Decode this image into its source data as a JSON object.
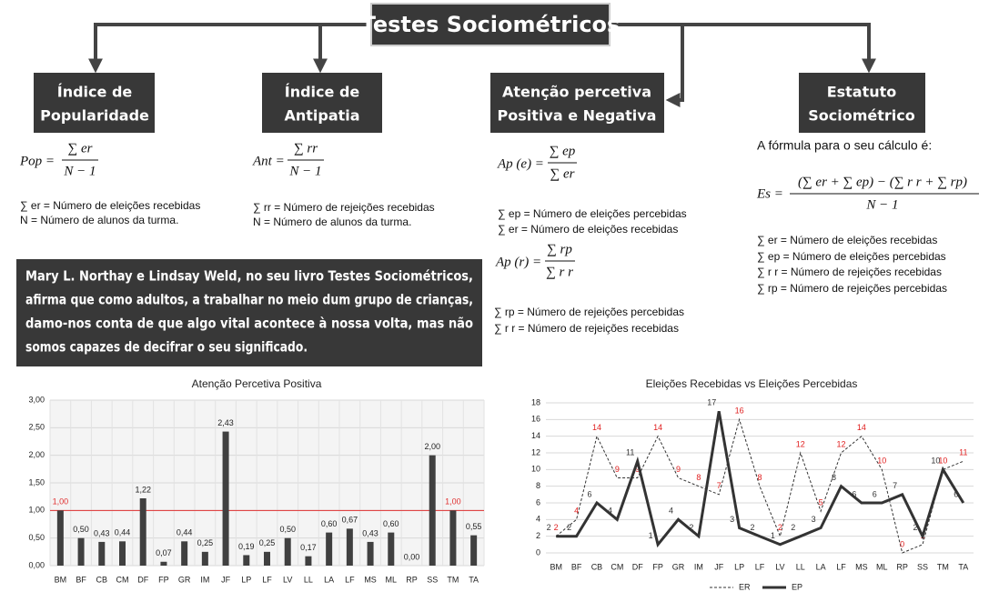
{
  "header": {
    "title": "Testes Sociométricos"
  },
  "sections": [
    {
      "title_lines": [
        "Índice de",
        "Popularidade"
      ],
      "formulas": [
        {
          "lhs": "Pop =",
          "num": "∑ er",
          "den": "N − 1"
        }
      ],
      "definitions": [
        "∑ er = Número de eleições recebidas",
        "N = Número de alunos da turma."
      ]
    },
    {
      "title_lines": [
        "Índice de",
        "Antipatia"
      ],
      "formulas": [
        {
          "lhs": "Ant =",
          "num": "∑ rr",
          "den": "N − 1"
        }
      ],
      "definitions": [
        "∑ rr = Número de rejeições recebidas",
        "N = Número de alunos da turma."
      ]
    },
    {
      "title_lines": [
        "Atenção percetiva",
        "Positiva e Negativa"
      ],
      "formulas": [
        {
          "lhs": "Ap (e) =",
          "num": "∑ ep",
          "den": "∑ er"
        },
        {
          "lhs": "Ap (r) =",
          "num": "∑ rp",
          "den": "∑ r r"
        }
      ],
      "definitions": [
        "∑ ep = Número de eleições percebidas",
        "∑ er = Número de eleições recebidas",
        "∑ rp = Número de rejeições percebidas",
        "∑ r r = Número de rejeições recebidas"
      ]
    },
    {
      "title_lines": [
        "Estatuto",
        "Sociométrico"
      ],
      "intro": "A fórmula para o seu cálculo é:",
      "formulas": [
        {
          "lhs": "Es =",
          "num": "(∑ er + ∑ ep) − (∑ r r + ∑ rp)",
          "den": "N − 1"
        }
      ],
      "definitions": [
        "∑ er = Número de eleições recebidas",
        "∑ ep = Número de eleições percebidas",
        "∑ r r = Número de rejeições recebidas",
        "∑ rp = Número de rejeições percebidas"
      ]
    }
  ],
  "quote": {
    "lines": [
      "Mary L. Northay e Lindsay Weld, no seu livro Testes Sociométricos,",
      "afirma que como adultos, a trabalhar no meio dum grupo de crianças,",
      "damo-nos conta de que algo vital acontece à nossa volta, mas não",
      "somos capazes de decifrar o seu significado."
    ]
  },
  "chart_data": [
    {
      "type": "bar",
      "title": "Atenção Percetiva Positiva",
      "categories": [
        "BM",
        "BF",
        "CB",
        "CM",
        "DF",
        "FP",
        "GR",
        "IM",
        "JF",
        "LP",
        "LF",
        "LV",
        "LL",
        "LA",
        "LF",
        "MS",
        "ML",
        "RP",
        "SS",
        "TM",
        "TA"
      ],
      "values": [
        1.0,
        0.5,
        0.43,
        0.44,
        1.22,
        0.07,
        0.44,
        0.25,
        2.43,
        0.19,
        0.25,
        0.5,
        0.17,
        0.6,
        0.67,
        0.43,
        0.6,
        0.0,
        2.0,
        1.0,
        0.55
      ],
      "value_labels": [
        "1,00",
        "0,50",
        "0,43",
        "0,44",
        "1,22",
        "0,07",
        "0,44",
        "0,25",
        "2,43",
        "0,19",
        "0,25",
        "0,50",
        "0,17",
        "0,60",
        "0,67",
        "0,43",
        "0,60",
        "0,00",
        "2,00",
        "1,00",
        "0,55"
      ],
      "color": "#404040",
      "ylim": [
        0,
        3
      ],
      "yticks": [
        {
          "value": 0,
          "label": "0,00"
        },
        {
          "value": 0.5,
          "label": "0,50"
        },
        {
          "value": 1,
          "label": "1,00"
        },
        {
          "value": 1.5,
          "label": "1,50"
        },
        {
          "value": 2,
          "label": "2,00"
        },
        {
          "value": 2.5,
          "label": "2,50"
        },
        {
          "value": 3,
          "label": "3,00"
        }
      ],
      "grid": true,
      "reference_line": {
        "value": 1,
        "color": "#e03030"
      }
    },
    {
      "type": "line",
      "title": "Eleições Recebidas vs Eleições Percebidas",
      "categories": [
        "BM",
        "BF",
        "CB",
        "CM",
        "DF",
        "FP",
        "GR",
        "IM",
        "JF",
        "LP",
        "LF",
        "LV",
        "LL",
        "LA",
        "LF",
        "MS",
        "ML",
        "RP",
        "SS",
        "TM",
        "TA"
      ],
      "series": [
        {
          "name": "ER",
          "color": "#333333",
          "dashed": true,
          "label_color": "#e02020",
          "values": [
            2,
            4,
            14,
            9,
            9,
            14,
            9,
            8,
            7,
            16,
            8,
            2,
            12,
            5,
            12,
            14,
            10,
            0,
            1,
            10,
            11
          ]
        },
        {
          "name": "EP",
          "color": "#333333",
          "dashed": false,
          "label_color": "#333333",
          "values": [
            2,
            2,
            6,
            4,
            11,
            1,
            4,
            2,
            17,
            3,
            2,
            1,
            2,
            3,
            8,
            6,
            6,
            7,
            2,
            10,
            6
          ]
        }
      ],
      "ylim": [
        0,
        18
      ],
      "yticks": [
        0,
        2,
        4,
        6,
        8,
        10,
        12,
        14,
        16,
        18
      ],
      "grid": true,
      "legend": "bottom"
    }
  ]
}
